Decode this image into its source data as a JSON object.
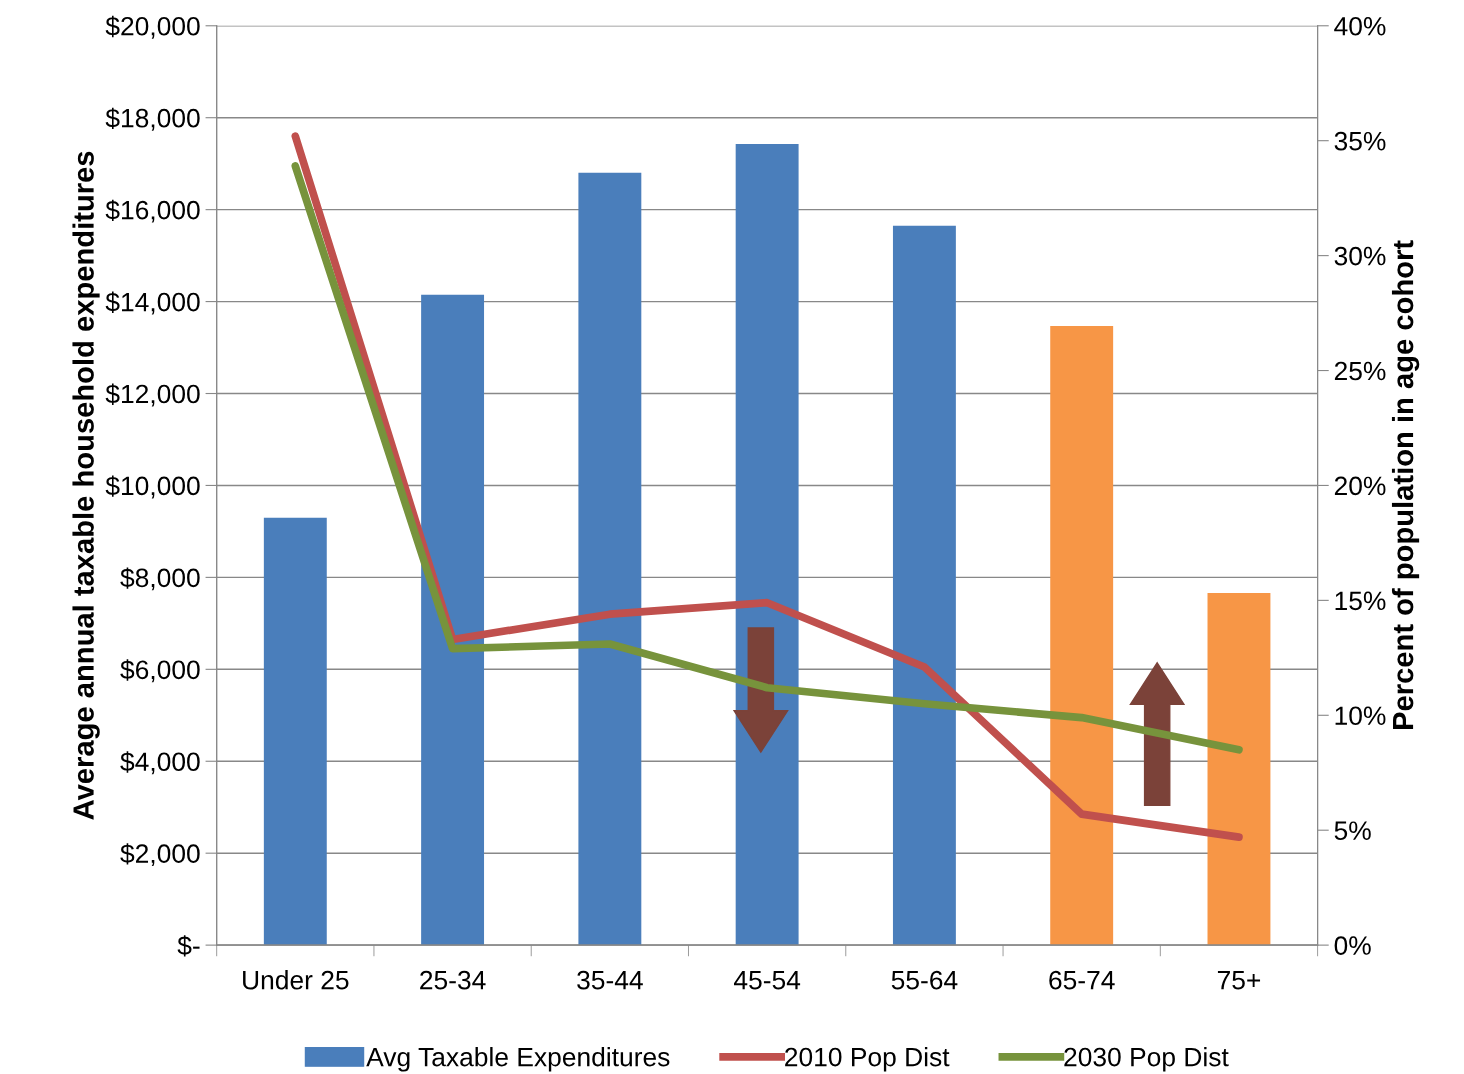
{
  "chart_data": {
    "type": "bar",
    "ylabel": "Average annual taxable household expenditures",
    "y2label": "Percent of population in age cohort",
    "categories": [
      "Under 25",
      "25-34",
      "35-44",
      "45-54",
      "55-64",
      "65-74",
      "75+"
    ],
    "series": [
      {
        "name": "Avg Taxable Expenditures",
        "color": "#4a7ebb",
        "colors": [
          "#4a7ebb",
          "#4a7ebb",
          "#4a7ebb",
          "#4a7ebb",
          "#4a7ebb",
          "#f79646",
          "#f79646"
        ],
        "values": [
          9300,
          14150,
          16800,
          17430,
          15650,
          13470,
          7660
        ]
      },
      {
        "name": "2010 Pop Dist",
        "type": "line",
        "axis": "y2",
        "color": "#c0504d",
        "values": [
          35.2,
          13.3,
          14.4,
          14.9,
          12.1,
          5.7,
          4.7
        ]
      },
      {
        "name": "2030 Pop Dist",
        "type": "line",
        "axis": "y2",
        "color": "#77933c",
        "values": [
          33.9,
          12.9,
          13.1,
          11.2,
          10.5,
          9.9,
          8.5
        ]
      }
    ],
    "ylim": [
      0,
      20000
    ],
    "yticks": [
      {
        "value": 0,
        "label": "$-"
      },
      {
        "value": 2000,
        "label": "$2,000"
      },
      {
        "value": 4000,
        "label": "$4,000"
      },
      {
        "value": 6000,
        "label": "$6,000"
      },
      {
        "value": 8000,
        "label": "$8,000"
      },
      {
        "value": 10000,
        "label": "$10,000"
      },
      {
        "value": 12000,
        "label": "$12,000"
      },
      {
        "value": 14000,
        "label": "$14,000"
      },
      {
        "value": 16000,
        "label": "$16,000"
      },
      {
        "value": 18000,
        "label": "$18,000"
      },
      {
        "value": 20000,
        "label": "$20,000"
      }
    ],
    "y2lim": [
      0,
      40
    ],
    "y2ticks": [
      {
        "value": 0,
        "label": "0%"
      },
      {
        "value": 5,
        "label": "5%"
      },
      {
        "value": 10,
        "label": "10%"
      },
      {
        "value": 15,
        "label": "15%"
      },
      {
        "value": 20,
        "label": "20%"
      },
      {
        "value": 25,
        "label": "25%"
      },
      {
        "value": 30,
        "label": "30%"
      },
      {
        "value": 35,
        "label": "35%"
      },
      {
        "value": 40,
        "label": "40%"
      }
    ],
    "grid": "y",
    "legend": "bottom",
    "marker": "none",
    "line_style": "solid"
  }
}
